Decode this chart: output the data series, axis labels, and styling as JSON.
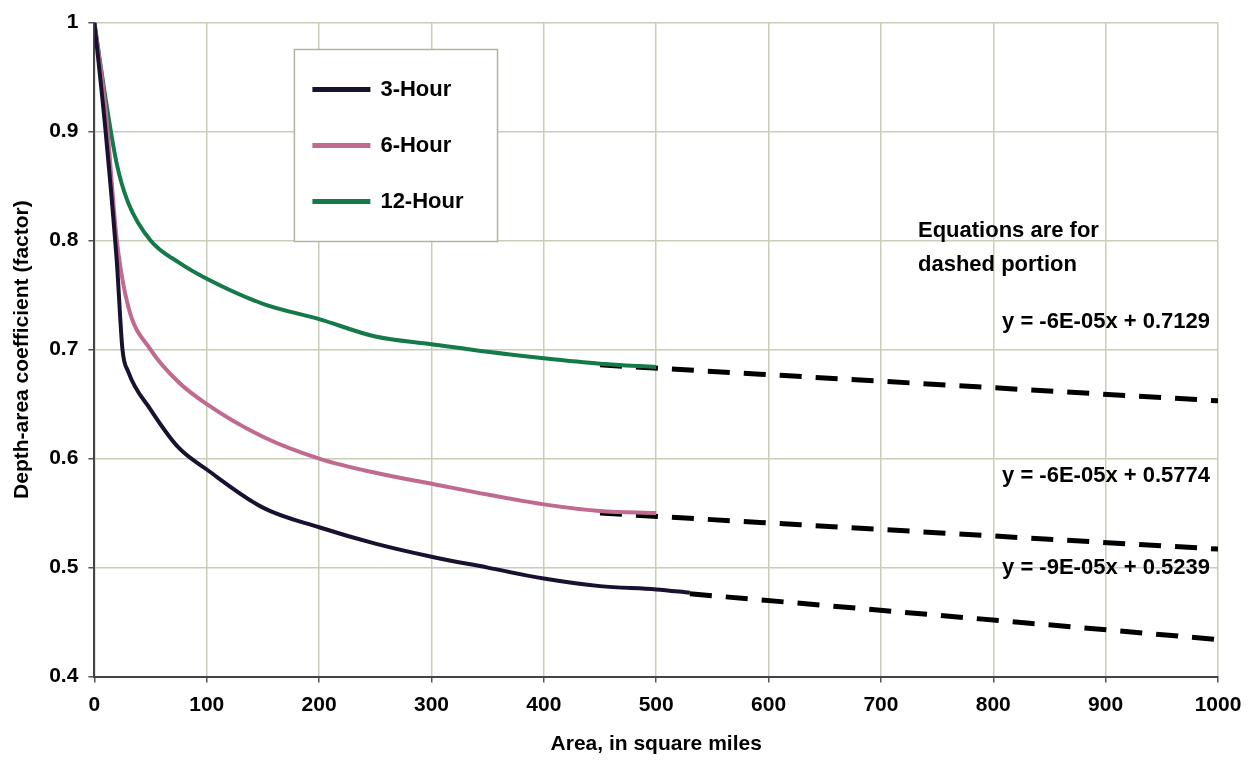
{
  "chart_data": {
    "type": "line",
    "xlabel": "Area, in square miles",
    "ylabel": "Depth-area coefficient (factor)",
    "xlim": [
      0,
      1000
    ],
    "xticks": [
      0,
      100,
      200,
      300,
      400,
      500,
      600,
      700,
      800,
      900,
      1000
    ],
    "ylim": [
      0.4,
      1
    ],
    "yticks": [
      0.4,
      0.5,
      0.6,
      0.7,
      0.8,
      0.9,
      1
    ],
    "grid": true,
    "legend": "top left",
    "marker": "none",
    "series": [
      {
        "name": "3-Hour",
        "color": "#1a1030",
        "x": [
          0,
          10,
          20,
          25,
          30,
          50,
          75,
          100,
          150,
          200,
          250,
          300,
          350,
          400,
          450,
          500,
          530
        ],
        "values": [
          1.0,
          0.9,
          0.78,
          0.7,
          0.68,
          0.645,
          0.61,
          0.59,
          0.555,
          0.537,
          0.522,
          0.51,
          0.5,
          0.49,
          0.483,
          0.48,
          0.477
        ]
      },
      {
        "name": "6-Hour",
        "color": "#c06a90",
        "x": [
          0,
          10,
          20,
          30,
          50,
          75,
          100,
          150,
          200,
          250,
          300,
          350,
          400,
          450,
          500
        ],
        "values": [
          1.0,
          0.92,
          0.8,
          0.74,
          0.7,
          0.67,
          0.65,
          0.62,
          0.6,
          0.587,
          0.577,
          0.567,
          0.558,
          0.552,
          0.55
        ]
      },
      {
        "name": "12-Hour",
        "color": "#157a4a",
        "x": [
          0,
          10,
          20,
          30,
          50,
          75,
          100,
          150,
          200,
          250,
          300,
          350,
          400,
          450,
          500
        ],
        "values": [
          1.0,
          0.93,
          0.87,
          0.835,
          0.8,
          0.78,
          0.765,
          0.742,
          0.728,
          0.712,
          0.705,
          0.698,
          0.692,
          0.687,
          0.684
        ]
      },
      {
        "type": "line",
        "color": "#000000",
        "line_style": "dashed",
        "x": [
          450,
          1000
        ],
        "values": [
          0.686,
          0.653
        ]
      },
      {
        "type": "line",
        "color": "#000000",
        "line_style": "dashed",
        "x": [
          450,
          1000
        ],
        "values": [
          0.55,
          0.517
        ]
      },
      {
        "type": "line",
        "color": "#000000",
        "line_style": "dashed",
        "x": [
          530,
          1000
        ],
        "values": [
          0.476,
          0.434
        ]
      }
    ],
    "annotations": [
      "Equations are for dashed portion",
      "y = -6E-05x + 0.7129",
      "y = -6E-05x + 0.5774",
      "y = -9E-05x + 0.5239"
    ]
  }
}
